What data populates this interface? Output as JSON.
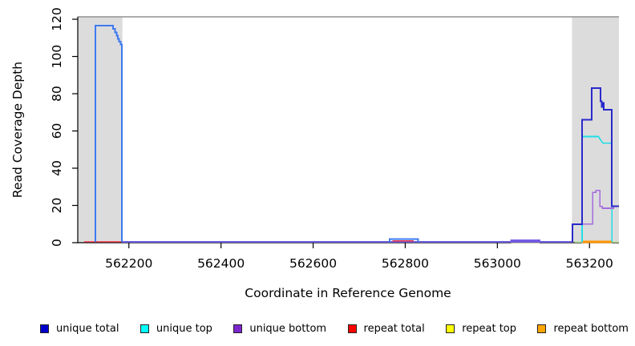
{
  "chart_data": {
    "type": "line",
    "title": "",
    "xlabel": "Coordinate in Reference Genome",
    "ylabel": "Read Coverage Depth",
    "xlim": [
      562089,
      563264
    ],
    "ylim": [
      0,
      121.3
    ],
    "x_ticks": [
      562200,
      562400,
      562600,
      562800,
      563000,
      563200
    ],
    "y_ticks": [
      0,
      20,
      40,
      60,
      80,
      100,
      120
    ],
    "grid": false,
    "legend_position": "bottom",
    "axis_color": "#000000",
    "top_border_color": "#909090",
    "shaded_regions": [
      {
        "name": "repeat-region-left",
        "x0": 562089,
        "x1": 562186,
        "color": "#DCDCDC"
      },
      {
        "name": "repeat-region-right",
        "x0": 563162,
        "x1": 563264,
        "color": "#DCDCDC"
      }
    ],
    "series": [
      {
        "name": "repeat top (right baseline)",
        "color": "#AEDC8E",
        "width": 1.5,
        "points": [
          [
            563167,
            0.3
          ],
          [
            563264,
            0.3
          ]
        ]
      },
      {
        "name": "repeat top (mid baseline)",
        "color": "#CFDA7E",
        "width": 1.5,
        "points": [
          [
            563030,
            0.15
          ],
          [
            563092,
            0.15
          ]
        ]
      },
      {
        "name": "unique baseline",
        "color": "#6A5AE0",
        "width": 1.8,
        "points": [
          [
            562186,
            0.4
          ],
          [
            563163,
            0.4
          ]
        ]
      },
      {
        "name": "repeat total (left region)",
        "color": "#FF5566",
        "width": 1.5,
        "points": [
          [
            562103,
            0.6
          ],
          [
            562184,
            0.6
          ]
        ]
      },
      {
        "name": "repeat total (mid bump)",
        "color": "#EE3344",
        "width": 1.5,
        "points": [
          [
            562772,
            0.9
          ],
          [
            562818,
            0.9
          ]
        ]
      },
      {
        "name": "unique bottom (mid bump)",
        "color": "#7B5BE4",
        "width": 1.8,
        "points": [
          [
            563030,
            0.4
          ],
          [
            563030,
            1.3
          ],
          [
            563092,
            1.3
          ],
          [
            563092,
            0.4
          ]
        ]
      },
      {
        "name": "unique total (mid bump)",
        "color": "#3D7AF0",
        "width": 1.8,
        "points": [
          [
            562766,
            0.4
          ],
          [
            562766,
            2
          ],
          [
            562828,
            2
          ],
          [
            562828,
            0.4
          ]
        ]
      },
      {
        "name": "repeat bottom (right region)",
        "color": "#FF9500",
        "width": 3,
        "points": [
          [
            563183,
            0.5
          ],
          [
            563248,
            0.5
          ]
        ]
      },
      {
        "name": "unique top (right region)",
        "color": "#22DDE6",
        "width": 1.6,
        "points": [
          [
            563184,
            0.2
          ],
          [
            563184,
            57
          ],
          [
            563220,
            57
          ],
          [
            563222,
            56
          ],
          [
            563226,
            54.5
          ],
          [
            563229,
            53.5
          ],
          [
            563249,
            53.5
          ],
          [
            563249,
            0.2
          ]
        ]
      },
      {
        "name": "unique bottom (right region)",
        "color": "#A46BDC",
        "width": 1.6,
        "points": [
          [
            563163,
            0.4
          ],
          [
            563163,
            10
          ],
          [
            563207,
            10
          ],
          [
            563207,
            27
          ],
          [
            563214,
            27
          ],
          [
            563214,
            28
          ],
          [
            563223,
            28
          ],
          [
            563223,
            19.5
          ],
          [
            563228,
            19.5
          ],
          [
            563228,
            18.5
          ],
          [
            563252,
            18.5
          ],
          [
            563252,
            19.5
          ],
          [
            563264,
            19.5
          ]
        ]
      },
      {
        "name": "unique total (left peak)",
        "color": "#3D7AF0",
        "width": 2,
        "points": [
          [
            562127,
            0.4
          ],
          [
            562127,
            116.5
          ],
          [
            562166,
            116.5
          ],
          [
            562166,
            114.8
          ],
          [
            562170,
            114.8
          ],
          [
            562170,
            113
          ],
          [
            562173,
            113
          ],
          [
            562173,
            111.2
          ],
          [
            562176,
            111.2
          ],
          [
            562176,
            109.5
          ],
          [
            562179,
            109.5
          ],
          [
            562179,
            108
          ],
          [
            562182,
            108
          ],
          [
            562182,
            106.5
          ],
          [
            562185,
            106.5
          ],
          [
            562185,
            0.4
          ]
        ]
      },
      {
        "name": "unique total (right region)",
        "color": "#2A2ACC",
        "width": 2,
        "points": [
          [
            563163,
            0.4
          ],
          [
            563163,
            10
          ],
          [
            563184,
            10
          ],
          [
            563184,
            66
          ],
          [
            563205,
            66
          ],
          [
            563205,
            83
          ],
          [
            563224,
            83
          ],
          [
            563224,
            76
          ],
          [
            563227,
            76
          ],
          [
            563227,
            73
          ],
          [
            563229,
            73
          ],
          [
            563229,
            75
          ],
          [
            563231,
            75
          ],
          [
            563231,
            71.5
          ],
          [
            563248,
            71.5
          ],
          [
            563248,
            19.5
          ],
          [
            563264,
            19.5
          ]
        ]
      }
    ]
  },
  "legend": {
    "items": [
      {
        "label": "unique total",
        "color": "#0000CD"
      },
      {
        "label": "unique top",
        "color": "#00FFFF"
      },
      {
        "label": "unique bottom",
        "color": "#7D26CD"
      },
      {
        "label": "repeat total",
        "color": "#FF0000"
      },
      {
        "label": "repeat top",
        "color": "#FFFF00"
      },
      {
        "label": "repeat bottom",
        "color": "#FFA500"
      }
    ]
  }
}
